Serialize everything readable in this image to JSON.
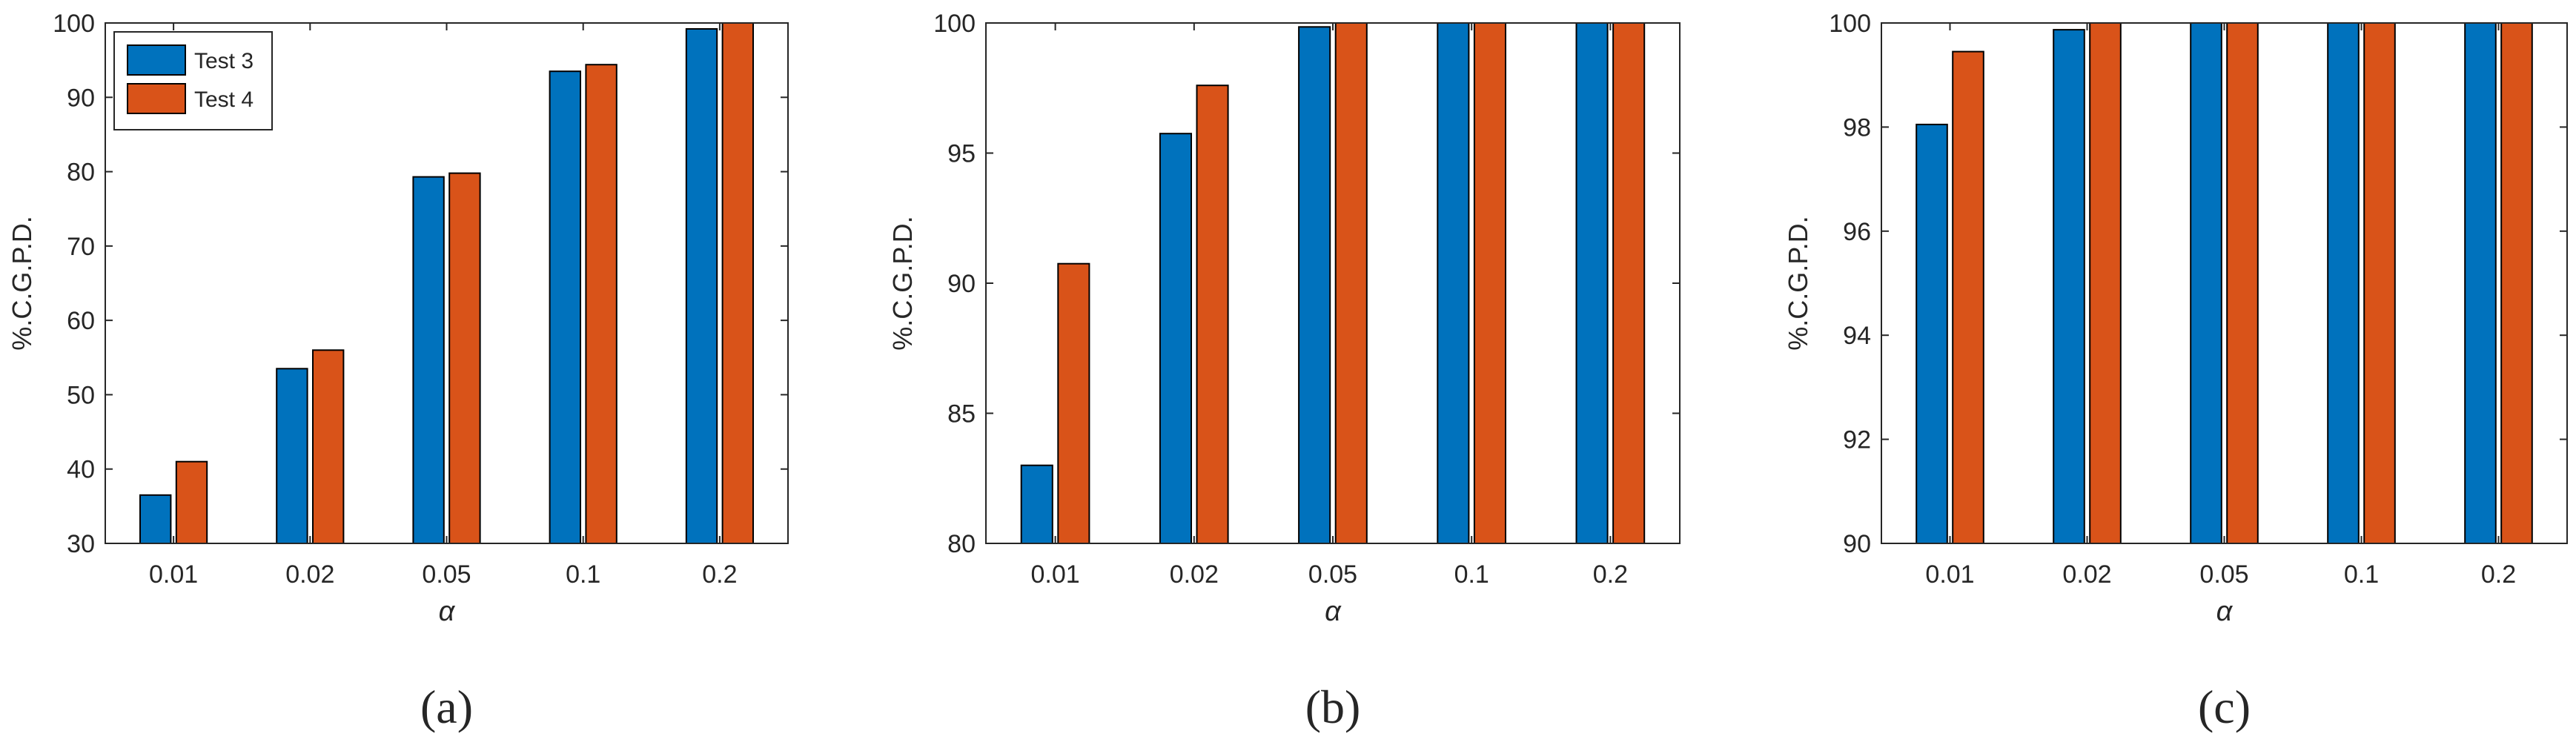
{
  "colors": {
    "series_1": "#0072BD",
    "series_2": "#D95319",
    "axis": "#262626",
    "background": "#FFFFFF"
  },
  "chart_data": [
    {
      "type": "bar",
      "panel_label": "(a)",
      "categories": [
        "0.01",
        "0.02",
        "0.05",
        "0.1",
        "0.2"
      ],
      "series": [
        {
          "name": "Test 3",
          "values": [
            36.5,
            53.5,
            79.3,
            93.5,
            99.2
          ]
        },
        {
          "name": "Test 4",
          "values": [
            41.0,
            56.0,
            79.8,
            94.4,
            100.0
          ]
        }
      ],
      "xlabel": "α",
      "ylabel": "%.C.G.P.D.",
      "ylim": [
        30,
        100
      ],
      "yticks": [
        30,
        40,
        50,
        60,
        70,
        80,
        90,
        100
      ],
      "legend": "top-left",
      "grid": false
    },
    {
      "type": "bar",
      "panel_label": "(b)",
      "categories": [
        "0.01",
        "0.02",
        "0.05",
        "0.1",
        "0.2"
      ],
      "series": [
        {
          "name": "Test 3",
          "values": [
            83.0,
            95.75,
            99.85,
            100.0,
            100.0
          ]
        },
        {
          "name": "Test 4",
          "values": [
            90.75,
            97.6,
            100.0,
            100.0,
            100.0
          ]
        }
      ],
      "xlabel": "α",
      "ylabel": "%.C.G.P.D.",
      "ylim": [
        80,
        100
      ],
      "yticks": [
        80,
        85,
        90,
        95,
        100
      ],
      "legend": "none",
      "grid": false
    },
    {
      "type": "bar",
      "panel_label": "(c)",
      "categories": [
        "0.01",
        "0.02",
        "0.05",
        "0.1",
        "0.2"
      ],
      "series": [
        {
          "name": "Test 3",
          "values": [
            98.05,
            99.87,
            100.0,
            100.0,
            100.0
          ]
        },
        {
          "name": "Test 4",
          "values": [
            99.45,
            100.0,
            100.0,
            100.0,
            100.0
          ]
        }
      ],
      "xlabel": "α",
      "ylabel": "%.C.G.P.D.",
      "ylim": [
        90,
        100
      ],
      "yticks": [
        90,
        92,
        94,
        96,
        98,
        100
      ],
      "legend": "none",
      "grid": false
    }
  ]
}
